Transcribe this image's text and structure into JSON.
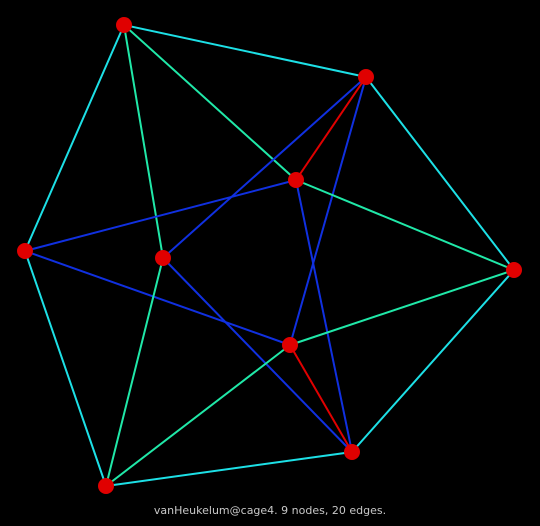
{
  "graph": {
    "nodes": [
      {
        "id": "n1"
      },
      {
        "id": "n2"
      },
      {
        "id": "n3"
      },
      {
        "id": "n4"
      },
      {
        "id": "n5"
      },
      {
        "id": "n6"
      },
      {
        "id": "n7"
      },
      {
        "id": "n8"
      },
      {
        "id": "n9"
      }
    ],
    "edges": [
      {
        "from": "n1",
        "to": "n2",
        "color": "#1de0e6"
      },
      {
        "from": "n1",
        "to": "n4",
        "color": "#1de0e6"
      },
      {
        "from": "n1",
        "to": "n3",
        "color": "#20e8a8"
      },
      {
        "from": "n1",
        "to": "n5",
        "color": "#20e8a8"
      },
      {
        "from": "n2",
        "to": "n3",
        "color": "#e00000"
      },
      {
        "from": "n2",
        "to": "n5",
        "color": "#1030e0"
      },
      {
        "from": "n2",
        "to": "n7",
        "color": "#1030e0"
      },
      {
        "from": "n2",
        "to": "n6",
        "color": "#1de0e6"
      },
      {
        "from": "n3",
        "to": "n4",
        "color": "#1030e0"
      },
      {
        "from": "n3",
        "to": "n6",
        "color": "#20e8a8"
      },
      {
        "from": "n3",
        "to": "n8",
        "color": "#1030e0"
      },
      {
        "from": "n4",
        "to": "n7",
        "color": "#1030e0"
      },
      {
        "from": "n4",
        "to": "n9",
        "color": "#1de0e6"
      },
      {
        "from": "n5",
        "to": "n8",
        "color": "#1030e0"
      },
      {
        "from": "n5",
        "to": "n9",
        "color": "#20e8a8"
      },
      {
        "from": "n6",
        "to": "n7",
        "color": "#20e8a8"
      },
      {
        "from": "n6",
        "to": "n8",
        "color": "#1de0e6"
      },
      {
        "from": "n7",
        "to": "n8",
        "color": "#e00000"
      },
      {
        "from": "n7",
        "to": "n9",
        "color": "#20e8a8"
      },
      {
        "from": "n8",
        "to": "n9",
        "color": "#1de0e6"
      }
    ],
    "node_color": "#e00000",
    "background_color": "#000000"
  },
  "caption": "vanHeukelum@cage4. 9 nodes, 20 edges."
}
